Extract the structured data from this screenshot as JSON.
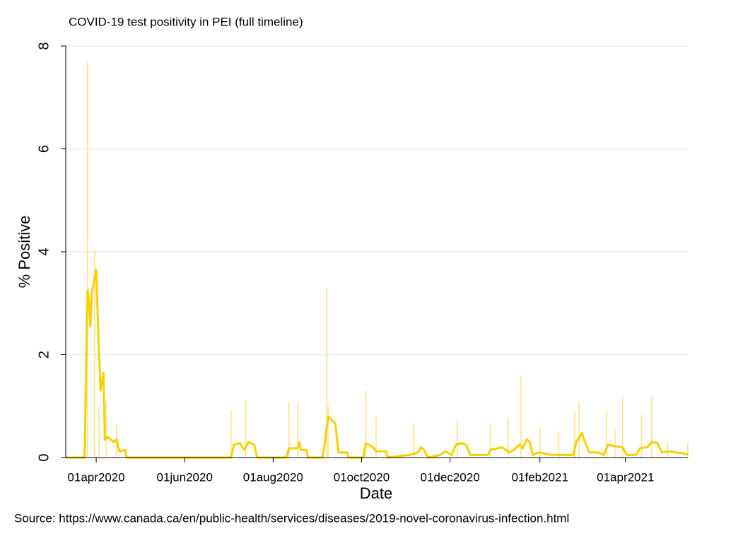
{
  "chart_data": {
    "type": "line",
    "title": "COVID-19 test positivity in PEI (full timeline)",
    "x_label": "Date",
    "y_label": "% Positive",
    "source": "Source: https://www.canada.ca/en/public-health/services/diseases/2019-novel-coronavirus-infection.html",
    "xlim": [
      "2020-03-11",
      "2021-05-14"
    ],
    "xticks": [
      {
        "value": "2020-04-01",
        "label": "01apr2020"
      },
      {
        "value": "2020-06-01",
        "label": "01jun2020"
      },
      {
        "value": "2020-08-01",
        "label": "01aug2020"
      },
      {
        "value": "2020-10-01",
        "label": "01oct2020"
      },
      {
        "value": "2020-12-01",
        "label": "01dec2020"
      },
      {
        "value": "2021-02-01",
        "label": "01feb2021"
      },
      {
        "value": "2021-04-01",
        "label": "01apr2021"
      }
    ],
    "ylim": [
      0,
      8
    ],
    "yticks": [
      0,
      2,
      4,
      6,
      8
    ],
    "grid": true,
    "series": [
      {
        "type": "line",
        "color": "#f8d000",
        "x": [
          "2020-03-11",
          "2020-03-24",
          "2020-03-26",
          "2020-03-27",
          "2020-03-28",
          "2020-03-29",
          "2020-04-01",
          "2020-04-03",
          "2020-04-04",
          "2020-04-06",
          "2020-04-07",
          "2020-04-09",
          "2020-04-13",
          "2020-04-15",
          "2020-04-17",
          "2020-04-21",
          "2020-04-22",
          "2020-07-03",
          "2020-07-05",
          "2020-07-09",
          "2020-07-12",
          "2020-07-15",
          "2020-07-19",
          "2020-07-21",
          "2020-08-10",
          "2020-08-12",
          "2020-08-18",
          "2020-08-19",
          "2020-08-20",
          "2020-08-24",
          "2020-08-25",
          "2020-09-04",
          "2020-09-05",
          "2020-09-08",
          "2020-09-10",
          "2020-09-13",
          "2020-09-15",
          "2020-09-21",
          "2020-09-22",
          "2020-10-02",
          "2020-10-04",
          "2020-10-09",
          "2020-10-11",
          "2020-10-18",
          "2020-10-19",
          "2020-11-03",
          "2020-11-09",
          "2020-11-11",
          "2020-11-13",
          "2020-11-16",
          "2020-11-24",
          "2020-11-28",
          "2020-12-02",
          "2020-12-05",
          "2020-12-09",
          "2020-12-12",
          "2020-12-15",
          "2020-12-27",
          "2020-12-29",
          "2021-01-03",
          "2021-01-06",
          "2021-01-11",
          "2021-01-14",
          "2021-01-18",
          "2021-01-20",
          "2021-01-23",
          "2021-01-25",
          "2021-01-27",
          "2021-01-31",
          "2021-02-04",
          "2021-02-09",
          "2021-02-24",
          "2021-02-26",
          "2021-03-02",
          "2021-03-04",
          "2021-03-07",
          "2021-03-13",
          "2021-03-17",
          "2021-03-20",
          "2021-03-25",
          "2021-03-30",
          "2021-04-02",
          "2021-04-08",
          "2021-04-11",
          "2021-04-16",
          "2021-04-19",
          "2021-04-23",
          "2021-04-26",
          "2021-05-01",
          "2021-05-06",
          "2021-05-11",
          "2021-05-14"
        ],
        "values": [
          0,
          0,
          3.25,
          3.1,
          2.55,
          3.2,
          3.65,
          2.0,
          1.3,
          1.65,
          0.35,
          0.4,
          0.3,
          0.35,
          0.12,
          0.15,
          0,
          0,
          0.25,
          0.28,
          0.15,
          0.3,
          0.25,
          0,
          0,
          0.18,
          0.18,
          0.3,
          0.15,
          0.15,
          0,
          0,
          0.15,
          0.8,
          0.75,
          0.65,
          0.1,
          0.1,
          0,
          0,
          0.28,
          0.2,
          0.12,
          0.12,
          0,
          0.05,
          0.1,
          0.2,
          0.15,
          0,
          0.05,
          0.12,
          0.05,
          0.25,
          0.28,
          0.25,
          0.05,
          0.05,
          0.15,
          0.18,
          0.2,
          0.1,
          0.15,
          0.25,
          0.18,
          0.35,
          0.3,
          0.05,
          0.1,
          0.08,
          0.05,
          0.05,
          0.3,
          0.48,
          0.3,
          0.1,
          0.1,
          0.05,
          0.25,
          0.22,
          0.2,
          0.05,
          0.05,
          0.18,
          0.2,
          0.3,
          0.28,
          0.1,
          0.12,
          0.1,
          0.08,
          0.06
        ]
      },
      {
        "type": "bar",
        "color": "#fbe49a",
        "x": [
          "2020-03-26",
          "2020-03-31",
          "2020-04-03",
          "2020-04-08",
          "2020-04-15",
          "2020-07-03",
          "2020-07-13",
          "2020-08-12",
          "2020-08-18",
          "2020-09-07",
          "2020-09-08",
          "2020-10-04",
          "2020-10-11",
          "2020-11-06",
          "2020-12-06",
          "2020-12-29",
          "2021-01-10",
          "2021-01-19",
          "2021-02-01",
          "2021-02-14",
          "2021-02-25",
          "2021-02-28",
          "2021-03-19",
          "2021-03-25",
          "2021-03-30",
          "2021-04-12",
          "2021-04-19",
          "2021-04-30",
          "2021-05-14"
        ],
        "values": [
          7.7,
          4.05,
          1.0,
          1.1,
          0.65,
          0.92,
          1.1,
          1.08,
          1.05,
          3.3,
          1.0,
          1.3,
          0.8,
          0.65,
          0.72,
          0.62,
          0.78,
          1.58,
          0.6,
          0.5,
          0.9,
          1.08,
          0.92,
          0.55,
          1.17,
          0.82,
          1.17,
          0.3,
          0.3
        ]
      }
    ]
  }
}
